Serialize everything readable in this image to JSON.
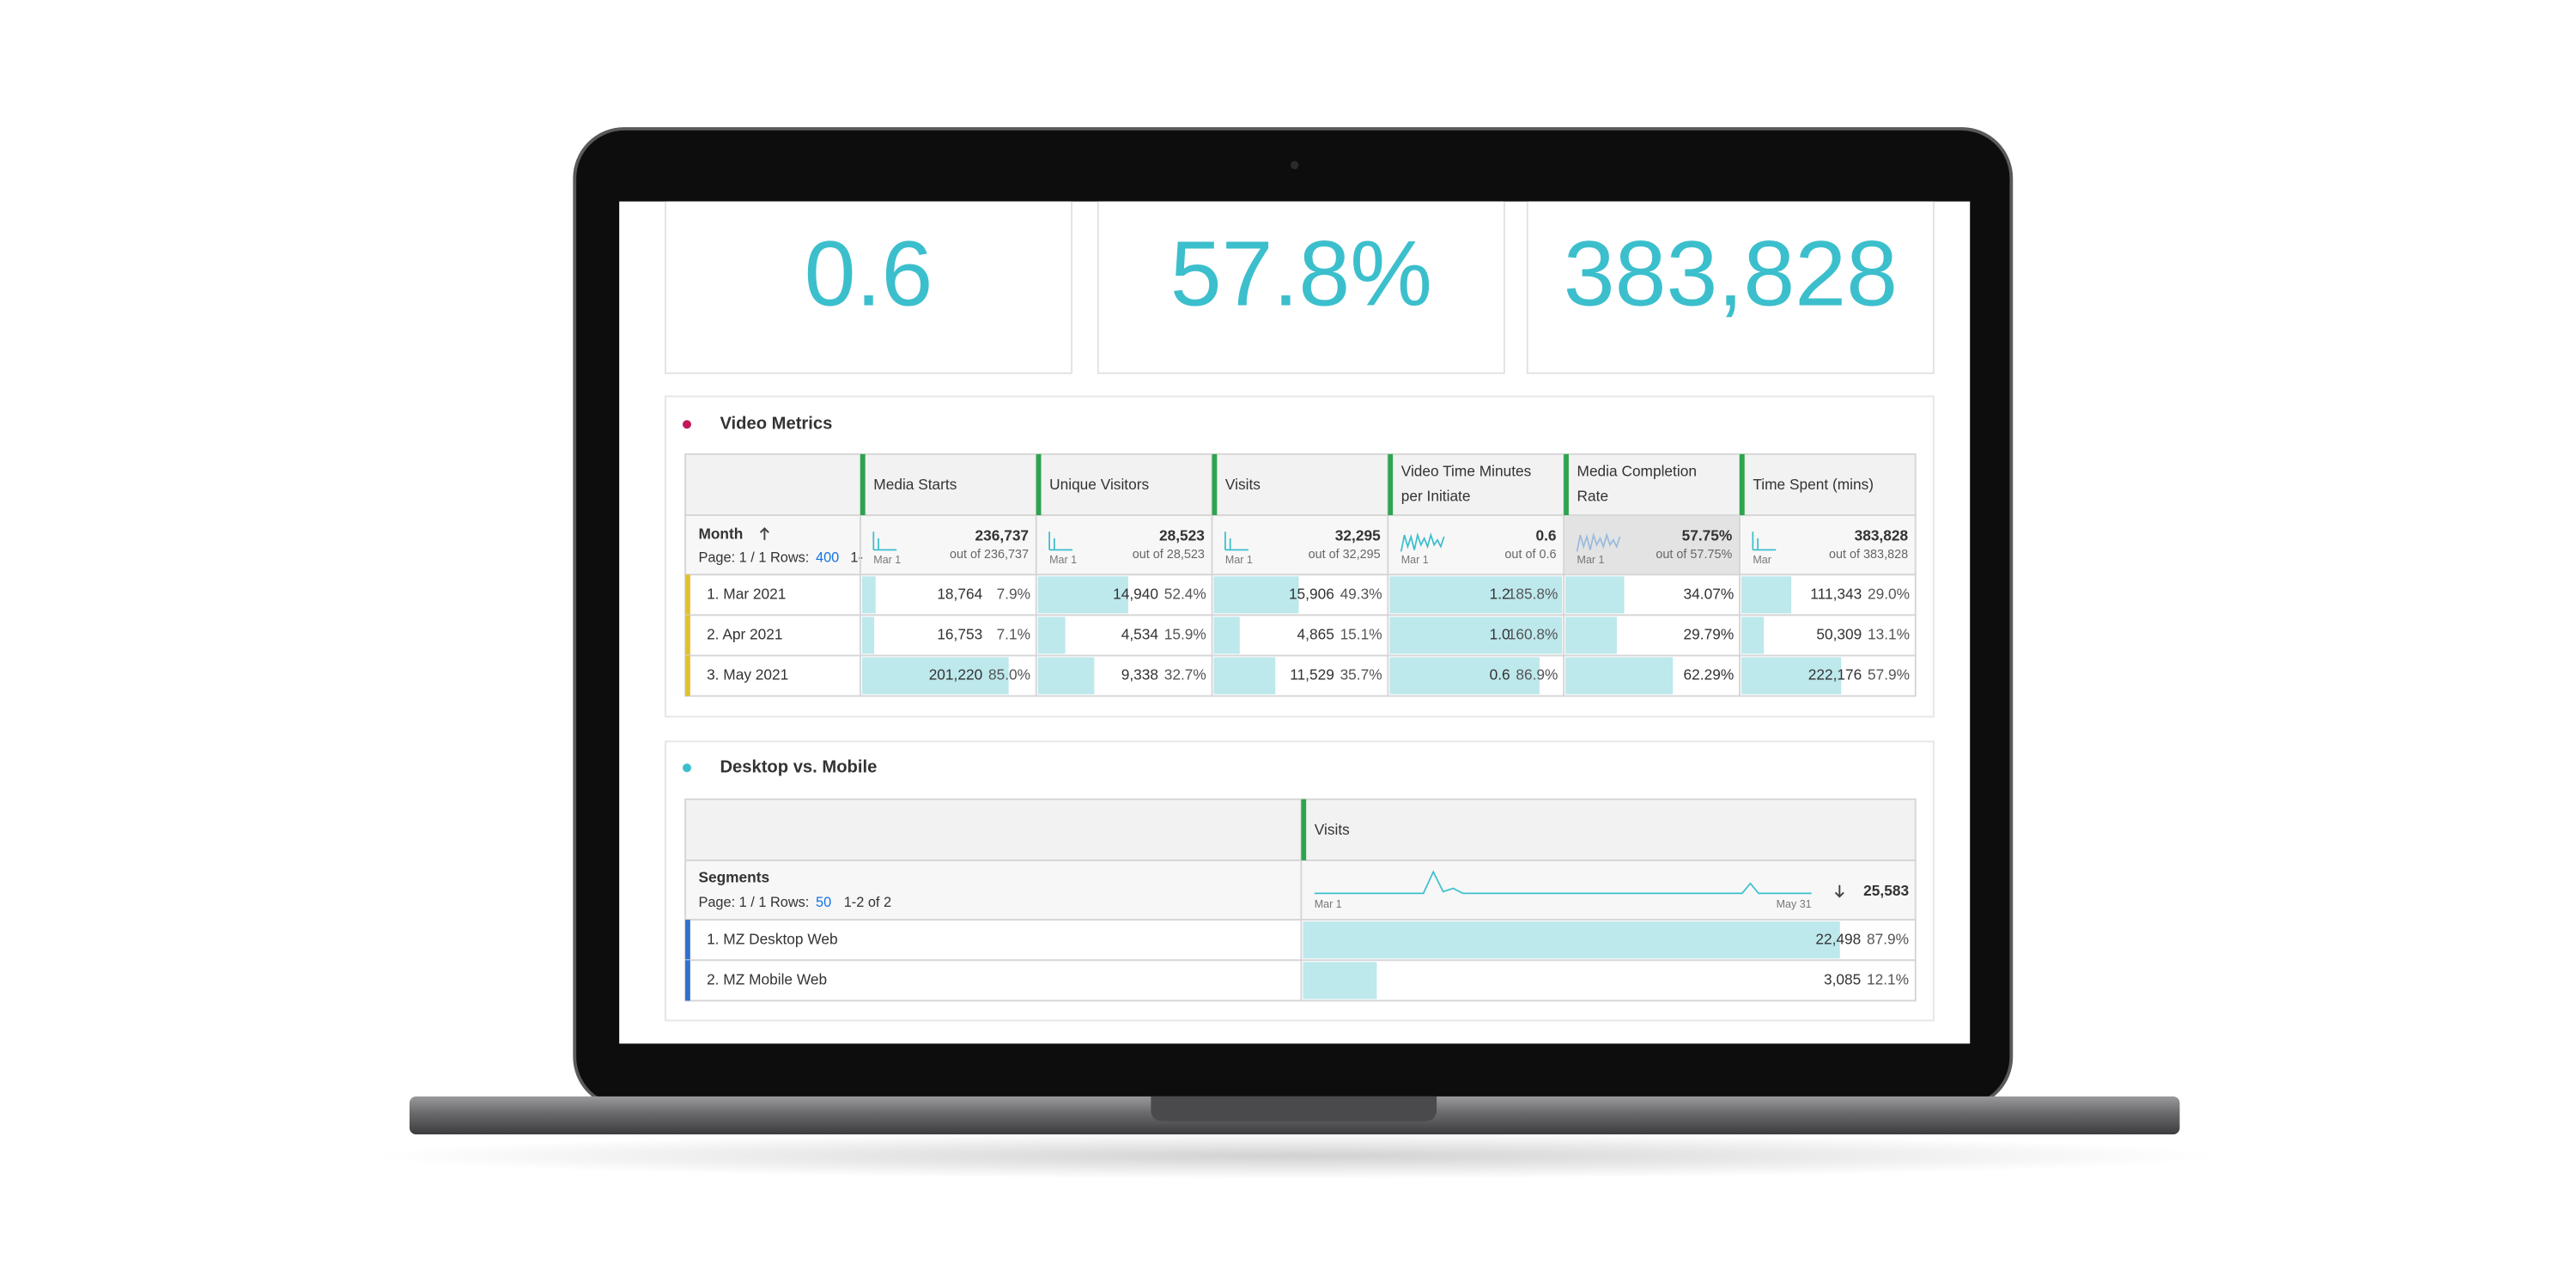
{
  "kpis": [
    "0.6",
    "57.8%",
    "383,828"
  ],
  "video_metrics": {
    "title": "Video Metrics",
    "dimension": "Month",
    "page_info": "Page: 1 / 1 Rows:",
    "rows_per_page": "400",
    "range": "1-",
    "columns": [
      {
        "name": [
          "Media Starts"
        ],
        "total": "236,737",
        "out_of": "out of 236,737",
        "spark_label": "Mar 1"
      },
      {
        "name": [
          "Unique Visitors"
        ],
        "total": "28,523",
        "out_of": "out of 28,523",
        "spark_label": "Mar 1"
      },
      {
        "name": [
          "Visits"
        ],
        "total": "32,295",
        "out_of": "out of 32,295",
        "spark_label": "Mar 1"
      },
      {
        "name": [
          "Video Time Minutes",
          "per Initiate"
        ],
        "total": "0.6",
        "out_of": "out of 0.6",
        "spark_label": "Mar 1"
      },
      {
        "name": [
          "Media Completion",
          "Rate"
        ],
        "total": "57.75%",
        "out_of": "out of 57.75%",
        "spark_label": "Mar 1"
      },
      {
        "name": [
          "Time Spent (mins)"
        ],
        "total": "383,828",
        "out_of": "out of 383,828",
        "spark_label": "Mar"
      }
    ],
    "rows": [
      {
        "label": "1. Mar 2021",
        "cells": [
          {
            "value": "18,764",
            "percent": "7.9%"
          },
          {
            "value": "14,940",
            "percent": "52.4%"
          },
          {
            "value": "15,906",
            "percent": "49.3%"
          },
          {
            "value": "1.2",
            "percent": "185.8%"
          },
          {
            "value": "34.07%"
          },
          {
            "value": "111,343",
            "percent": "29.0%"
          }
        ]
      },
      {
        "label": "2. Apr 2021",
        "cells": [
          {
            "value": "16,753",
            "percent": "7.1%"
          },
          {
            "value": "4,534",
            "percent": "15.9%"
          },
          {
            "value": "4,865",
            "percent": "15.1%"
          },
          {
            "value": "1.0",
            "percent": "160.8%"
          },
          {
            "value": "29.79%"
          },
          {
            "value": "50,309",
            "percent": "13.1%"
          }
        ]
      },
      {
        "label": "3. May 2021",
        "cells": [
          {
            "value": "201,220",
            "percent": "85.0%"
          },
          {
            "value": "9,338",
            "percent": "32.7%"
          },
          {
            "value": "11,529",
            "percent": "35.7%"
          },
          {
            "value": "0.6",
            "percent": "86.9%"
          },
          {
            "value": "62.29%"
          },
          {
            "value": "222,176",
            "percent": "57.9%"
          }
        ]
      }
    ]
  },
  "desktop_mobile": {
    "title": "Desktop vs. Mobile",
    "dimension": "Segments",
    "page_info": "Page: 1 / 1 Rows:",
    "rows_per_page": "50",
    "range": "1-2 of 2",
    "column": "Visits",
    "spark_start": "Mar 1",
    "spark_end": "May 31",
    "total": "25,583",
    "rows": [
      {
        "label": "1. MZ Desktop Web",
        "value": "22,498",
        "percent": "87.9%"
      },
      {
        "label": "2. MZ Mobile Web",
        "value": "3,085",
        "percent": "12.1%"
      }
    ]
  }
}
